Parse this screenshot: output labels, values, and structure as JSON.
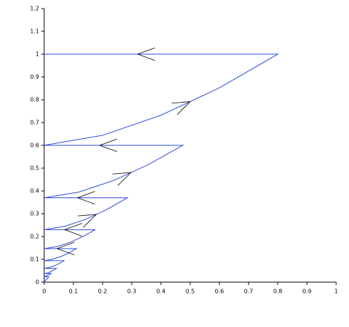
{
  "chart_data": {
    "type": "line",
    "x": [
      0,
      0.016,
      0,
      0.026,
      0,
      0.011,
      0.021,
      0.032,
      0.042,
      0,
      0.017,
      0.034,
      0.051,
      0.068,
      0,
      0.028,
      0.055,
      0.083,
      0.11,
      0,
      0.044,
      0.088,
      0.131,
      0.175,
      0,
      0.071,
      0.143,
      0.214,
      0.285,
      0,
      0.119,
      0.238,
      0.356,
      0.475,
      0,
      0.2,
      0.4,
      0.6,
      0.8,
      0
    ],
    "series": [
      {
        "color": "#2a4be0",
        "values": [
          0,
          0.024,
          0.024,
          0.038,
          0.038,
          0.04,
          0.045,
          0.052,
          0.06,
          0.06,
          0.064,
          0.071,
          0.081,
          0.094,
          0.094,
          0.1,
          0.111,
          0.127,
          0.147,
          0.147,
          0.156,
          0.174,
          0.199,
          0.23,
          0.23,
          0.245,
          0.276,
          0.318,
          0.37,
          0.37,
          0.395,
          0.446,
          0.515,
          0.6,
          0.6,
          0.644,
          0.732,
          0.852,
          1,
          1
        ]
      }
    ],
    "xlim": [
      0,
      1
    ],
    "xticks": [
      0,
      0.1,
      0.2,
      0.3,
      0.4,
      0.5,
      0.6,
      0.7,
      0.8,
      0.9,
      1
    ],
    "ylim": [
      0,
      1.2
    ],
    "yticks": [
      0,
      0.1,
      0.2,
      0.3,
      0.4,
      0.5,
      0.6,
      0.7,
      0.8,
      0.9,
      1,
      1.1,
      1.2
    ]
  }
}
